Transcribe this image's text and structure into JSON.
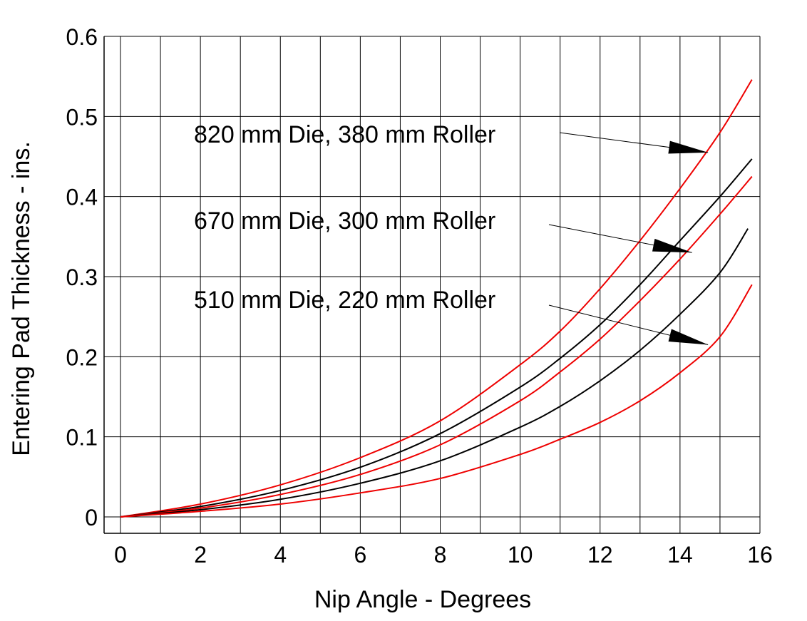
{
  "chart_data": {
    "type": "line",
    "xlabel": "Nip Angle - Degrees",
    "ylabel": "Entering Pad Thickness - ins.",
    "xlim": [
      0,
      16
    ],
    "ylim": [
      0,
      0.6
    ],
    "grid": true,
    "x_ticks": [
      "0",
      "2",
      "4",
      "6",
      "8",
      "10",
      "12",
      "14",
      "16"
    ],
    "y_ticks": [
      "0",
      "0.1",
      "0.2",
      "0.3",
      "0.4",
      "0.5",
      "0.6"
    ],
    "series": [
      {
        "color": "#ee0000",
        "x": [
          0,
          2,
          4,
          6,
          8,
          10,
          11,
          12,
          13,
          14,
          15,
          15.8
        ],
        "values": [
          0,
          0.016,
          0.04,
          0.074,
          0.12,
          0.19,
          0.232,
          0.285,
          0.345,
          0.41,
          0.48,
          0.546
        ]
      },
      {
        "color": "#000000",
        "x": [
          0,
          2,
          4,
          6,
          8,
          10,
          11,
          12,
          13,
          14,
          15,
          15.8
        ],
        "values": [
          0,
          0.013,
          0.033,
          0.062,
          0.104,
          0.162,
          0.198,
          0.24,
          0.29,
          0.345,
          0.4,
          0.447
        ]
      },
      {
        "color": "#ee0000",
        "x": [
          0,
          2,
          4,
          6,
          8,
          10,
          11,
          12,
          13,
          14,
          15,
          15.8
        ],
        "values": [
          0,
          0.011,
          0.028,
          0.053,
          0.09,
          0.145,
          0.181,
          0.222,
          0.27,
          0.322,
          0.378,
          0.425
        ]
      },
      {
        "color": "#000000",
        "x": [
          0,
          2,
          4,
          6,
          8,
          10,
          11,
          12,
          13,
          14,
          15,
          15.7
        ],
        "values": [
          0,
          0.009,
          0.022,
          0.042,
          0.07,
          0.112,
          0.138,
          0.17,
          0.208,
          0.253,
          0.305,
          0.36
        ]
      },
      {
        "color": "#ee0000",
        "x": [
          0,
          2,
          4,
          6,
          8,
          10,
          11,
          12,
          13,
          14,
          15,
          15.8
        ],
        "values": [
          0,
          0.007,
          0.016,
          0.03,
          0.048,
          0.078,
          0.097,
          0.118,
          0.145,
          0.18,
          0.225,
          0.29
        ]
      }
    ],
    "annotations": [
      {
        "text": "820 mm Die, 380 mm Roller",
        "points_to": [
          14.7,
          0.455
        ]
      },
      {
        "text": "670 mm Die, 300 mm Roller",
        "points_to": [
          14.3,
          0.33
        ]
      },
      {
        "text": "510 mm Die, 220 mm Roller",
        "points_to": [
          14.7,
          0.215
        ]
      }
    ]
  }
}
